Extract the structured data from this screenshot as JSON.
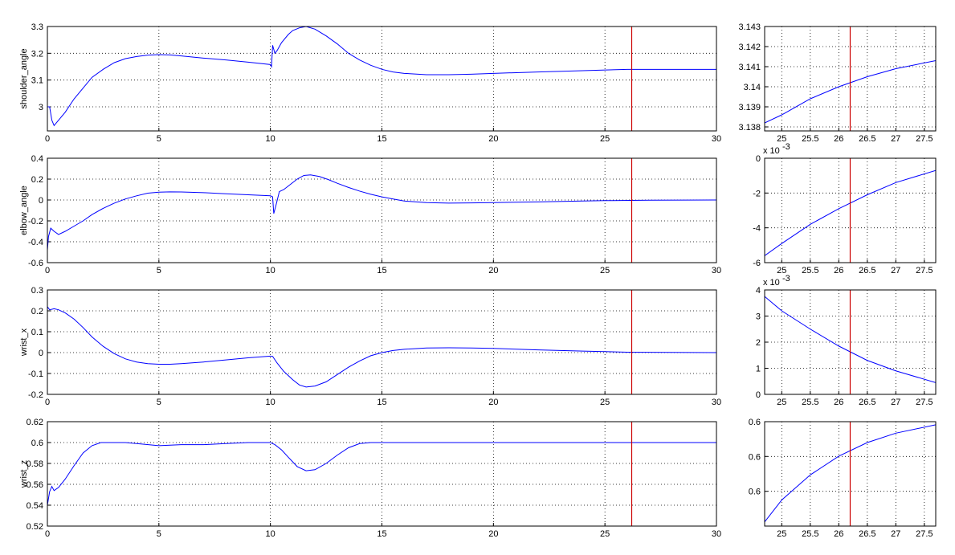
{
  "colors": {
    "series": "#0000ff",
    "cursor": "#cc0000",
    "background": "#ffffff",
    "axes": "#000000"
  },
  "cursor_time": 26.2,
  "chart_data": [
    {
      "type": "line",
      "ylabel": "shoulder_angle",
      "xlim": [
        0,
        30
      ],
      "ylim": [
        2.91,
        3.3
      ],
      "xticks": [
        "0",
        "5",
        "10",
        "15",
        "20",
        "25",
        "30"
      ],
      "yticks": [
        "3",
        "3.1",
        "3.2",
        "3.3"
      ],
      "grid": true,
      "series": [
        {
          "x": [
            0,
            0.1,
            0.2,
            0.3,
            0.5,
            0.8,
            1.2,
            1.6,
            2.0,
            2.5,
            3.0,
            3.5,
            4.0,
            4.5,
            5.0,
            5.5,
            6.0,
            7.0,
            8.0,
            9.0,
            10.0,
            10.05,
            10.1,
            10.2,
            10.3,
            10.5,
            10.8,
            11.0,
            11.3,
            11.6,
            12.0,
            12.5,
            13.0,
            13.5,
            14.0,
            14.5,
            15.0,
            15.5,
            16.0,
            17.0,
            18.0,
            19.0,
            20.0,
            22.0,
            24.0,
            26.0,
            28.0,
            30.0
          ],
          "y": [
            3.0,
            3.0,
            2.95,
            2.93,
            2.95,
            2.98,
            3.03,
            3.07,
            3.11,
            3.14,
            3.165,
            3.18,
            3.188,
            3.193,
            3.195,
            3.194,
            3.19,
            3.182,
            3.175,
            3.167,
            3.158,
            3.15,
            3.23,
            3.2,
            3.21,
            3.24,
            3.27,
            3.285,
            3.295,
            3.3,
            3.29,
            3.265,
            3.235,
            3.2,
            3.175,
            3.155,
            3.14,
            3.13,
            3.125,
            3.12,
            3.12,
            3.122,
            3.125,
            3.13,
            3.135,
            3.14,
            3.14,
            3.14
          ]
        }
      ]
    },
    {
      "type": "line",
      "ylabel": "",
      "xlim": [
        24.7,
        27.7
      ],
      "ylim": [
        3.1378,
        3.143
      ],
      "xticks": [
        "25",
        "25.5",
        "26",
        "26.5",
        "27",
        "27.5"
      ],
      "yticks": [
        "3.138",
        "3.139",
        "3.14",
        "3.141",
        "3.142",
        "3.143"
      ],
      "grid": true,
      "series": [
        {
          "x": [
            24.7,
            25.0,
            25.5,
            26.0,
            26.5,
            27.0,
            27.7
          ],
          "y": [
            3.1382,
            3.1386,
            3.1394,
            3.14,
            3.1405,
            3.1409,
            3.1413
          ]
        }
      ]
    },
    {
      "type": "line",
      "ylabel": "elbow_angle",
      "xlim": [
        0,
        30
      ],
      "ylim": [
        -0.6,
        0.4
      ],
      "xticks": [
        "0",
        "5",
        "10",
        "15",
        "20",
        "25",
        "30"
      ],
      "yticks": [
        "-0.6",
        "-0.4",
        "-0.2",
        "0",
        "0.2",
        "0.4"
      ],
      "grid": true,
      "series": [
        {
          "x": [
            0,
            0.05,
            0.15,
            0.3,
            0.5,
            0.8,
            1.2,
            1.6,
            2.0,
            2.5,
            3.0,
            3.5,
            4.0,
            4.5,
            5.0,
            5.5,
            6.0,
            7.0,
            8.0,
            9.0,
            10.0,
            10.1,
            10.15,
            10.25,
            10.4,
            10.6,
            10.9,
            11.2,
            11.5,
            11.8,
            12.2,
            12.6,
            13.0,
            13.5,
            14.0,
            14.5,
            15.0,
            15.5,
            16.0,
            17.0,
            18.0,
            19.0,
            20.0,
            22.0,
            24.0,
            25.0,
            27.0,
            30.0
          ],
          "y": [
            -0.48,
            -0.35,
            -0.27,
            -0.3,
            -0.33,
            -0.3,
            -0.25,
            -0.2,
            -0.14,
            -0.08,
            -0.03,
            0.01,
            0.04,
            0.065,
            0.075,
            0.078,
            0.077,
            0.07,
            0.06,
            0.05,
            0.04,
            0.03,
            -0.13,
            -0.05,
            0.08,
            0.1,
            0.15,
            0.2,
            0.235,
            0.24,
            0.225,
            0.195,
            0.16,
            0.12,
            0.085,
            0.055,
            0.03,
            0.01,
            -0.01,
            -0.025,
            -0.03,
            -0.028,
            -0.025,
            -0.018,
            -0.01,
            -0.006,
            -0.002,
            0.0
          ]
        }
      ]
    },
    {
      "type": "line",
      "ylabel": "",
      "xlim": [
        24.7,
        27.7
      ],
      "ylim": [
        -6,
        0
      ],
      "yaxis_multiplier": "x 10",
      "yaxis_exponent": "-3",
      "xticks": [
        "25",
        "25.5",
        "26",
        "26.5",
        "27",
        "27.5"
      ],
      "yticks": [
        "-6",
        "-4",
        "-2",
        "0"
      ],
      "grid": true,
      "series": [
        {
          "x": [
            24.7,
            25.0,
            25.5,
            26.0,
            26.5,
            27.0,
            27.7
          ],
          "y": [
            -5.6,
            -4.9,
            -3.8,
            -2.9,
            -2.1,
            -1.4,
            -0.7
          ]
        }
      ]
    },
    {
      "type": "line",
      "ylabel": "wrist_x",
      "xlim": [
        0,
        30
      ],
      "ylim": [
        -0.2,
        0.3
      ],
      "xticks": [
        "0",
        "5",
        "10",
        "15",
        "20",
        "25",
        "30"
      ],
      "yticks": [
        "-0.2",
        "-0.1",
        "0",
        "0.1",
        "0.2",
        "0.3"
      ],
      "grid": true,
      "series": [
        {
          "x": [
            0,
            0.1,
            0.3,
            0.5,
            0.8,
            1.2,
            1.6,
            2.0,
            2.5,
            3.0,
            3.5,
            4.0,
            4.5,
            5.0,
            5.5,
            6.0,
            7.0,
            8.0,
            9.0,
            10.0,
            10.1,
            10.3,
            10.6,
            11.0,
            11.3,
            11.6,
            12.0,
            12.5,
            13.0,
            13.5,
            14.0,
            14.5,
            15.0,
            15.5,
            16.0,
            17.0,
            18.0,
            19.0,
            20.0,
            22.0,
            24.0,
            26.0,
            30.0
          ],
          "y": [
            0.22,
            0.205,
            0.21,
            0.205,
            0.19,
            0.16,
            0.12,
            0.075,
            0.03,
            -0.005,
            -0.03,
            -0.045,
            -0.053,
            -0.056,
            -0.056,
            -0.053,
            -0.045,
            -0.035,
            -0.025,
            -0.017,
            -0.018,
            -0.05,
            -0.09,
            -0.13,
            -0.155,
            -0.165,
            -0.16,
            -0.14,
            -0.105,
            -0.07,
            -0.04,
            -0.015,
            0.0,
            0.01,
            0.016,
            0.022,
            0.023,
            0.022,
            0.02,
            0.013,
            0.007,
            0.002,
            0.0
          ]
        }
      ]
    },
    {
      "type": "line",
      "ylabel": "",
      "xlim": [
        24.7,
        27.7
      ],
      "ylim": [
        0,
        4
      ],
      "yaxis_multiplier": "x 10",
      "yaxis_exponent": "-3",
      "xticks": [
        "25",
        "25.5",
        "26",
        "26.5",
        "27",
        "27.5"
      ],
      "yticks": [
        "0",
        "1",
        "2",
        "3",
        "4"
      ],
      "grid": true,
      "series": [
        {
          "x": [
            24.7,
            25.0,
            25.5,
            26.0,
            26.5,
            27.0,
            27.7
          ],
          "y": [
            3.75,
            3.2,
            2.5,
            1.85,
            1.3,
            0.9,
            0.45
          ]
        }
      ]
    },
    {
      "type": "line",
      "ylabel": "wrist_z",
      "xlim": [
        0,
        30
      ],
      "ylim": [
        0.52,
        0.62
      ],
      "xticks": [
        "0",
        "5",
        "10",
        "15",
        "20",
        "25",
        "30"
      ],
      "yticks": [
        "0.52",
        "0.54",
        "0.56",
        "0.58",
        "0.6",
        "0.62"
      ],
      "grid": true,
      "series": [
        {
          "x": [
            0,
            0.1,
            0.2,
            0.3,
            0.5,
            0.8,
            1.2,
            1.6,
            2.0,
            2.4,
            2.8,
            3.5,
            4.0,
            5.0,
            6.0,
            7.0,
            8.0,
            9.0,
            10.0,
            10.2,
            10.5,
            10.8,
            11.2,
            11.6,
            12.0,
            12.5,
            13.0,
            13.5,
            14.0,
            14.5,
            15.0,
            20.0,
            25.0,
            30.0
          ],
          "y": [
            0.54,
            0.553,
            0.558,
            0.554,
            0.557,
            0.565,
            0.578,
            0.59,
            0.597,
            0.6,
            0.6,
            0.6,
            0.599,
            0.597,
            0.598,
            0.598,
            0.599,
            0.6,
            0.6,
            0.598,
            0.593,
            0.586,
            0.577,
            0.573,
            0.574,
            0.58,
            0.588,
            0.595,
            0.599,
            0.6,
            0.6,
            0.6,
            0.6,
            0.6
          ]
        }
      ]
    },
    {
      "type": "line",
      "ylabel": "",
      "xlim": [
        24.7,
        27.7
      ],
      "ylim": [
        0,
        1
      ],
      "xticks": [
        "25",
        "25.5",
        "26",
        "26.5",
        "27",
        "27.5"
      ],
      "yticks": [
        "0.6",
        "0.6",
        "0.6"
      ],
      "ytick_values": [
        0.333,
        0.667,
        1.0
      ],
      "grid": true,
      "series": [
        {
          "x": [
            24.7,
            25.0,
            25.5,
            26.0,
            26.5,
            27.0,
            27.7
          ],
          "y": [
            0.04,
            0.25,
            0.49,
            0.67,
            0.8,
            0.89,
            0.97
          ]
        }
      ]
    }
  ]
}
